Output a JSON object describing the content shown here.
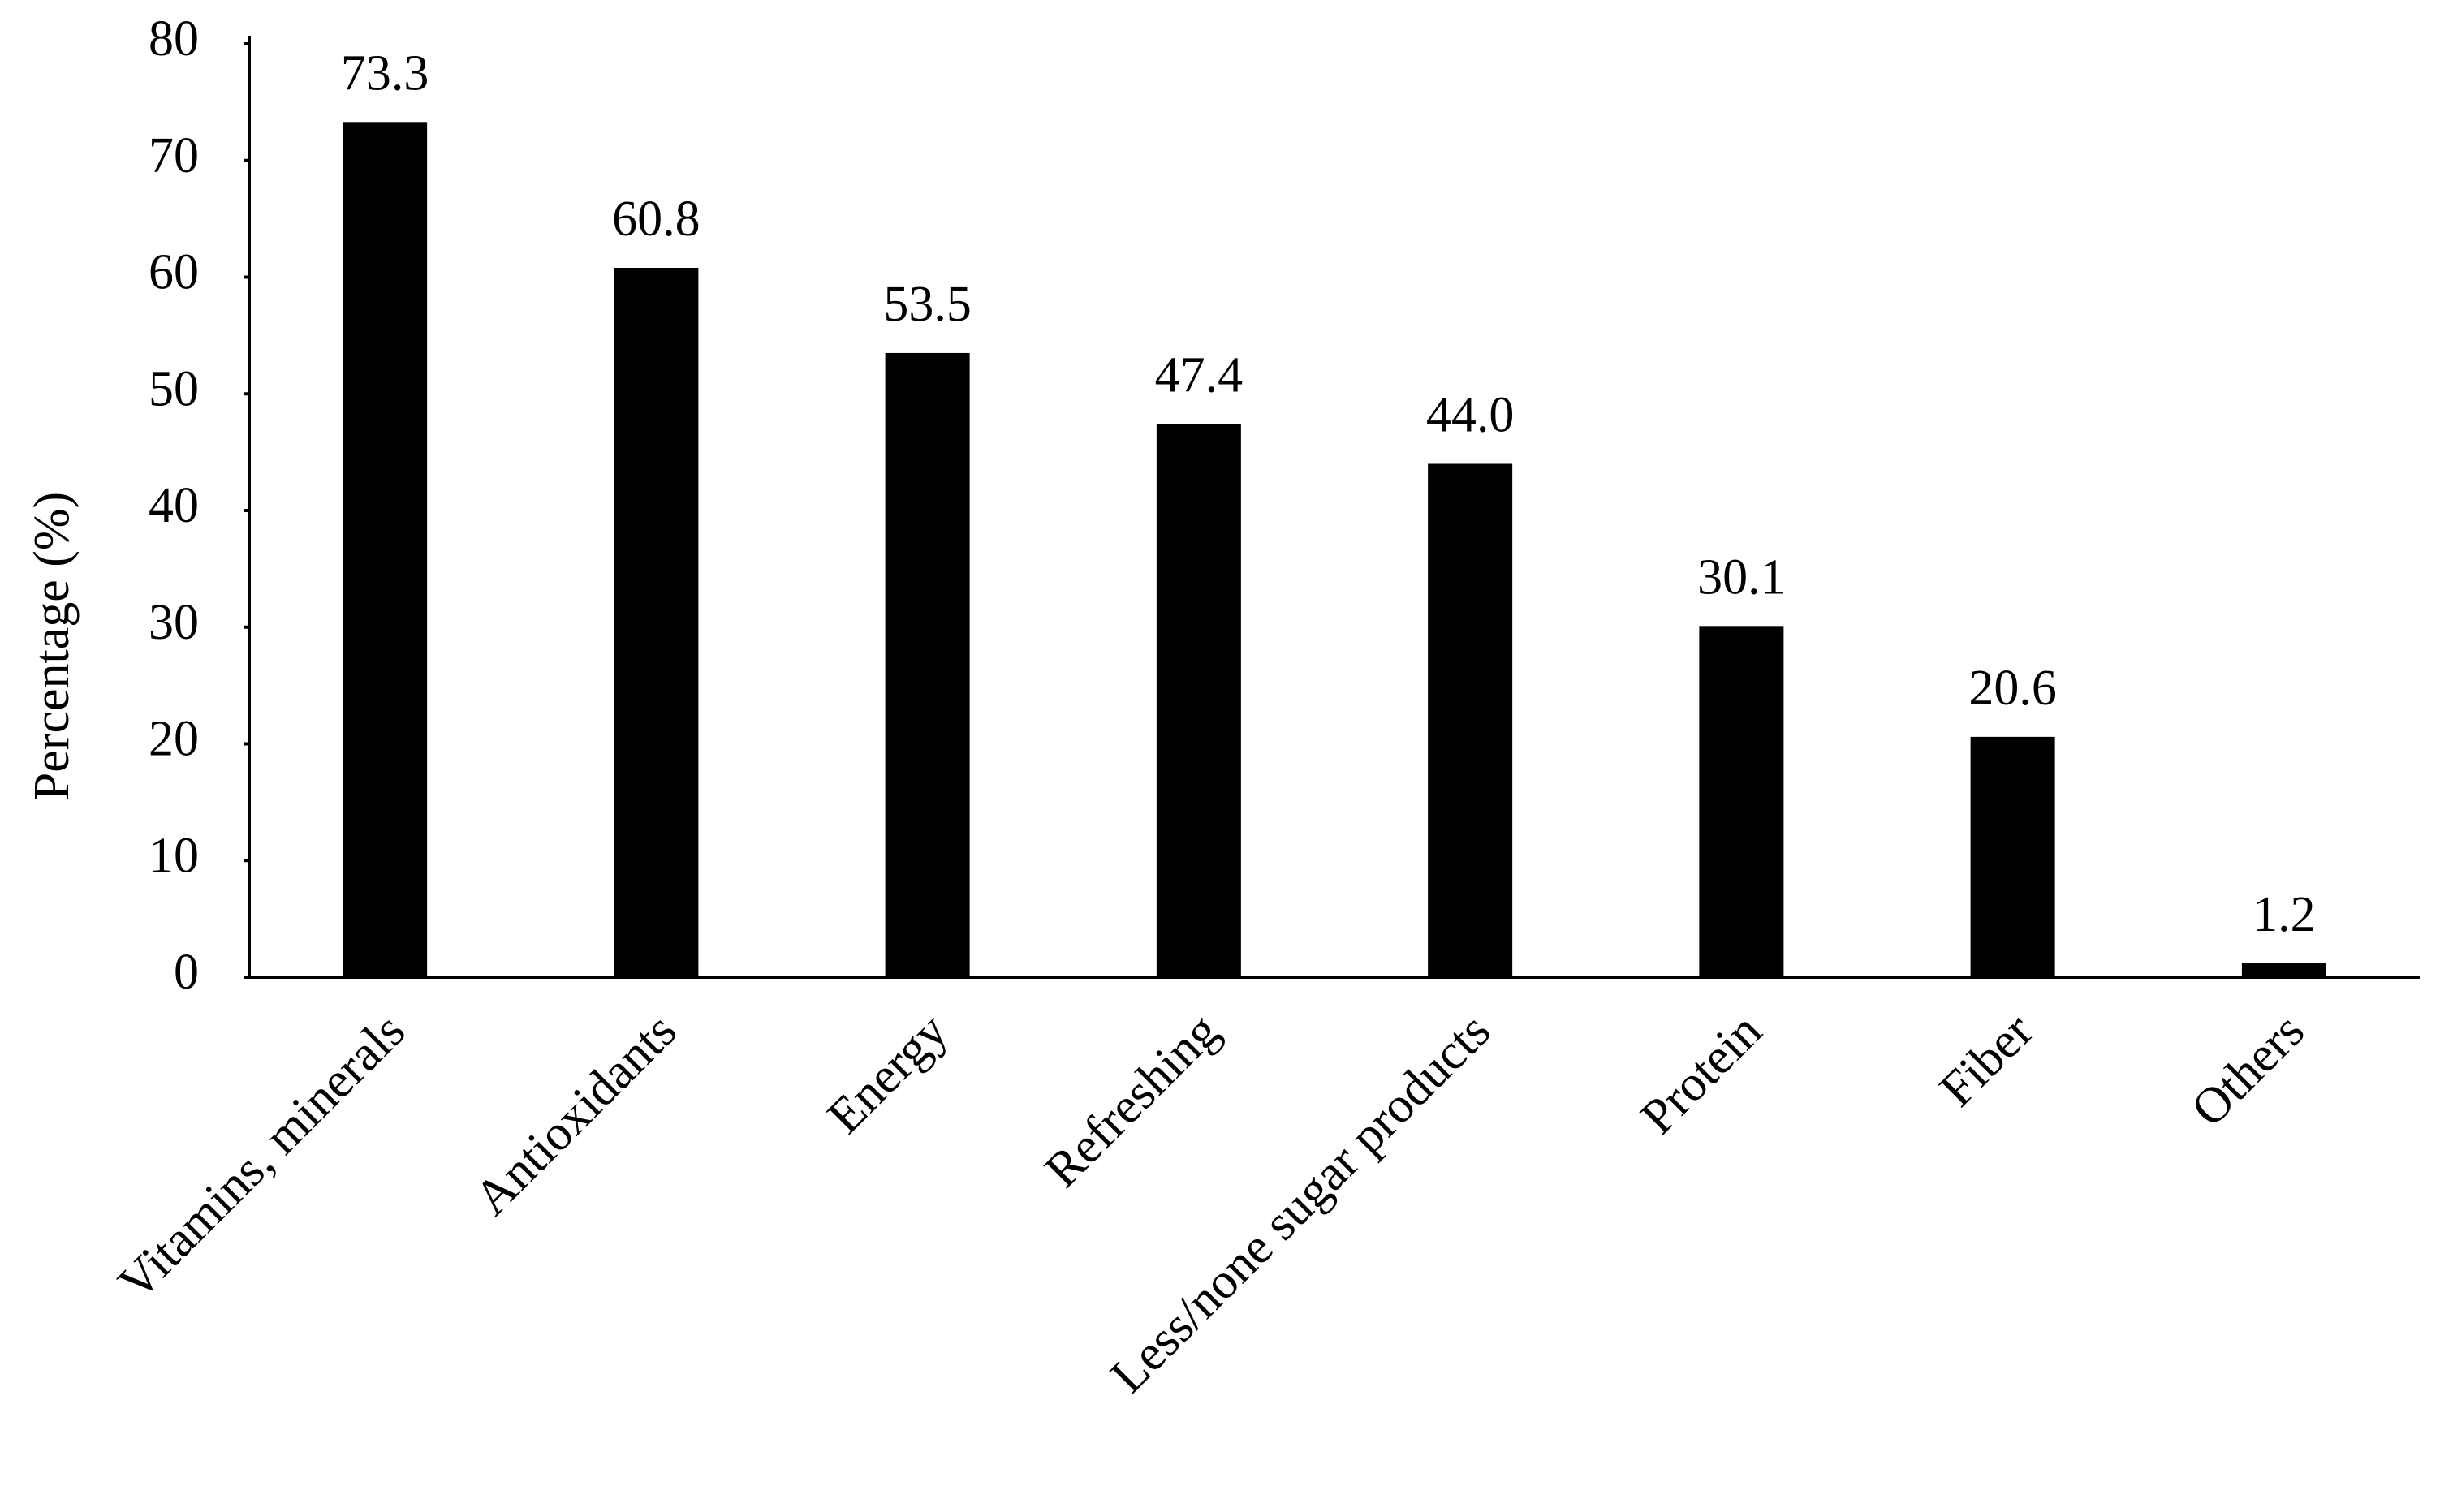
{
  "chart_data": {
    "type": "bar",
    "y_label": "Percentage (%)",
    "categories": [
      "Vitamins, minerals",
      "Antioxidants",
      "Energy",
      "Refreshing",
      "Less/none sugar products",
      "Protein",
      "Fiber",
      "Others"
    ],
    "values": [
      73.3,
      60.8,
      53.5,
      47.4,
      44.0,
      30.1,
      20.6,
      1.2
    ],
    "value_labels": [
      "73.3",
      "60.8",
      "53.5",
      "47.4",
      "44.0",
      "30.1",
      "20.6",
      "1.2"
    ],
    "color": "#000000",
    "ylim": [
      0,
      80
    ],
    "yticks": [
      0,
      10,
      20,
      30,
      40,
      50,
      60,
      70,
      80
    ],
    "grid": false
  }
}
